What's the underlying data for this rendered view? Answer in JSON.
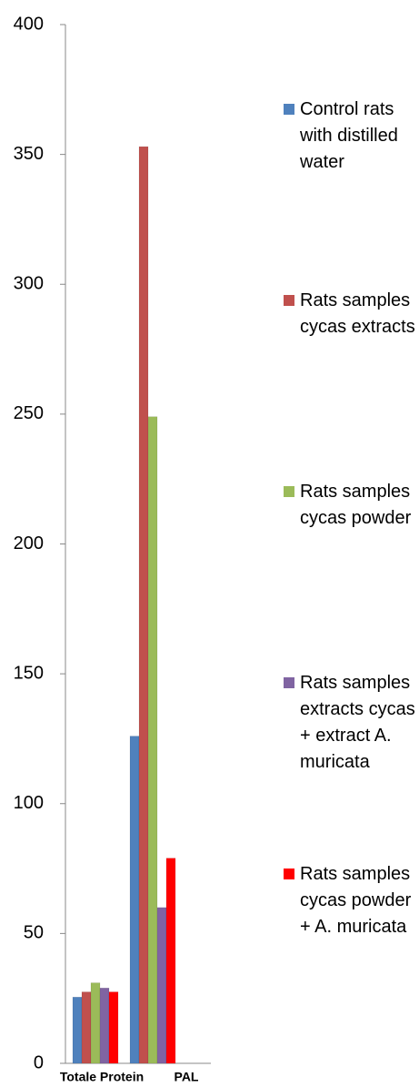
{
  "chart_data": {
    "type": "bar",
    "categories": [
      "Totale Protein",
      "PAL"
    ],
    "series": [
      {
        "name": "Control rats with distilled water",
        "color": "#4f81bd",
        "values": [
          25.5,
          126
        ]
      },
      {
        "name": "Rats samples cycas extracts",
        "color": "#c0504d",
        "values": [
          27.5,
          353
        ]
      },
      {
        "name": "Rats samples cycas powder",
        "color": "#9bbb59",
        "values": [
          31,
          249
        ]
      },
      {
        "name": "Rats samples extracts cycas + extract A. muricata",
        "color": "#8064a2",
        "values": [
          29,
          60
        ]
      },
      {
        "name": "Rats samples cycas powder + A. muricata",
        "color": "#ff0000",
        "values": [
          27.5,
          79
        ]
      }
    ],
    "ylim": [
      0,
      400
    ],
    "yticks": [
      0,
      50,
      100,
      150,
      200,
      250,
      300,
      350,
      400
    ],
    "legend": "right"
  }
}
